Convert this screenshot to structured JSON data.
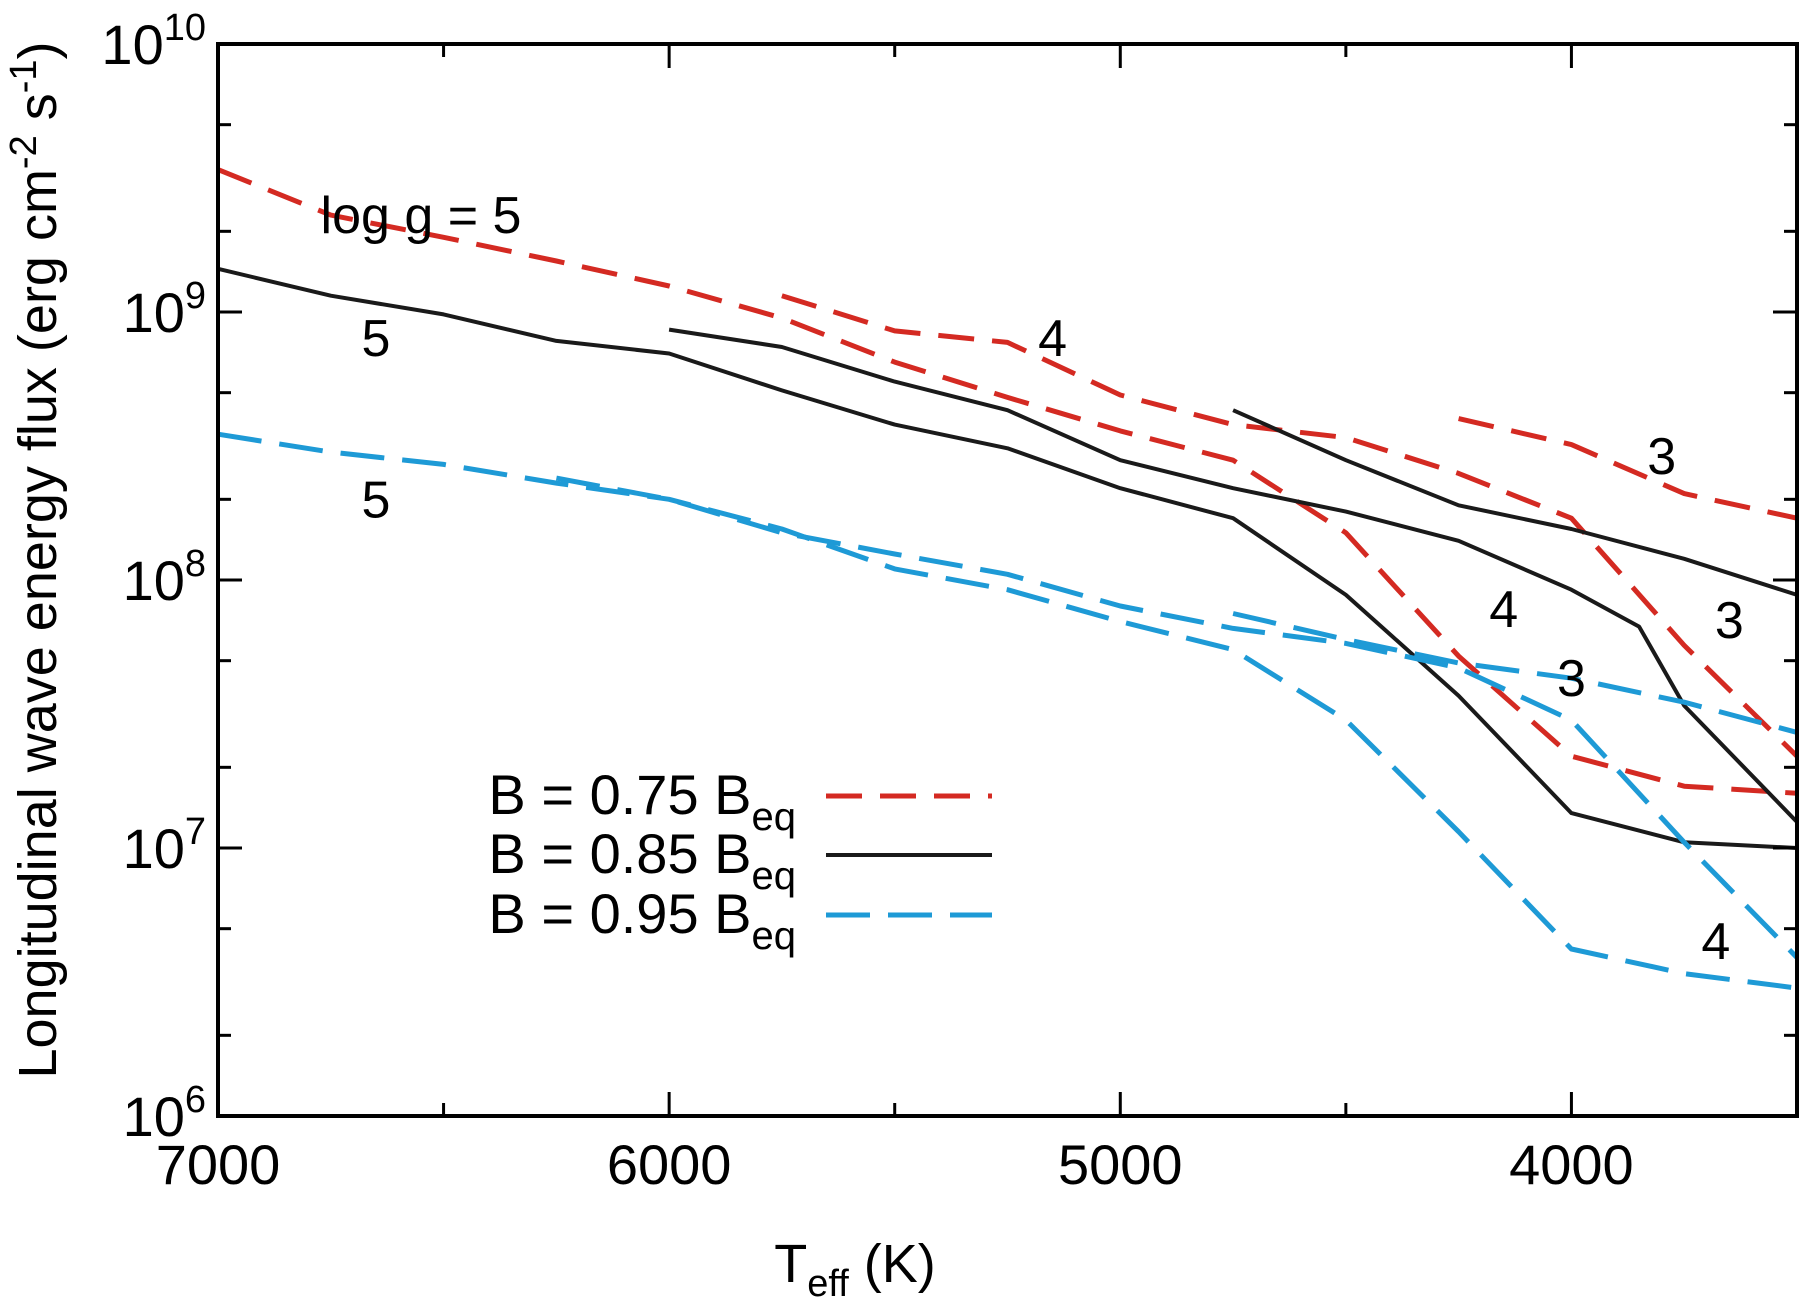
{
  "chart_data": {
    "type": "line",
    "title": "",
    "xlabel": {
      "base": "T",
      "sub": "eff",
      "rest": " (K)"
    },
    "ylabel": {
      "main": "Longitudinal wave energy flux  (erg cm",
      "sup1": "-2",
      "mid": " s",
      "sup2": "-1",
      "end": ")"
    },
    "x_reversed": true,
    "xlim": [
      7000,
      3500
    ],
    "x_ticks": [
      7000,
      6000,
      5000,
      4000
    ],
    "x_tick_labels": [
      "7000",
      "6000",
      "5000",
      "4000"
    ],
    "y_scale": "log",
    "ylim": [
      1000000,
      10000000000
    ],
    "y_ticks": [
      1000000,
      10000000,
      100000000,
      1000000000,
      10000000000
    ],
    "y_tick_labels": [
      {
        "base": "10",
        "exp": "6"
      },
      {
        "base": "10",
        "exp": "7"
      },
      {
        "base": "10",
        "exp": "8"
      },
      {
        "base": "10",
        "exp": "9"
      },
      {
        "base": "10",
        "exp": "10"
      }
    ],
    "grid": false,
    "legend_position": "lower-left",
    "legend": [
      {
        "prefix": "B = 0.75 B",
        "sub": "eq",
        "color": "#d42a22",
        "style": "dashed",
        "key": "red"
      },
      {
        "prefix": "B = 0.85 B",
        "sub": "eq",
        "color": "#1a1a1a",
        "style": "solid",
        "key": "black"
      },
      {
        "prefix": "B = 0.95 B",
        "sub": "eq",
        "color": "#1e9ad6",
        "style": "dashed",
        "key": "blue"
      }
    ],
    "series": [
      {
        "key": "red",
        "group": "log g = 5",
        "x": [
          7000,
          6750,
          6500,
          6250,
          6000,
          5750,
          5500,
          5250,
          5000,
          4750,
          4500,
          4250,
          4000,
          3750,
          3500
        ],
        "y": [
          3400000000,
          2300000000,
          1900000000,
          1550000000,
          1250000000,
          950000000,
          650000000,
          480000000,
          360000000,
          280000000,
          150000000,
          52000000,
          22000000,
          17000000,
          16000000
        ]
      },
      {
        "key": "red",
        "group": "log g = 4",
        "x": [
          5750,
          5500,
          5250,
          5000,
          4750,
          4500,
          4250,
          4000,
          3750,
          3500
        ],
        "y": [
          1150000000,
          850000000,
          770000000,
          490000000,
          380000000,
          340000000,
          250000000,
          170000000,
          57000000,
          22000000
        ]
      },
      {
        "key": "red",
        "group": "log g = 3",
        "x": [
          4250,
          4000,
          3750,
          3500
        ],
        "y": [
          400000000,
          320000000,
          210000000,
          170000000
        ]
      },
      {
        "key": "black",
        "group": "log g = 5",
        "x": [
          7000,
          6750,
          6500,
          6250,
          6000,
          5750,
          5500,
          5250,
          5000,
          4750,
          4500,
          4250,
          4000,
          3750,
          3500
        ],
        "y": [
          1450000000,
          1150000000,
          980000000,
          780000000,
          700000000,
          510000000,
          380000000,
          310000000,
          220000000,
          170000000,
          88000000,
          37000000,
          13500000,
          10500000,
          10000000
        ]
      },
      {
        "key": "black",
        "group": "log g = 4",
        "x": [
          6000,
          5750,
          5500,
          5250,
          5000,
          4750,
          4500,
          4250,
          4000,
          3850,
          3750,
          3500
        ],
        "y": [
          860000000,
          740000000,
          550000000,
          430000000,
          280000000,
          220000000,
          180000000,
          140000000,
          92000000,
          67000000,
          34000000,
          12500000
        ]
      },
      {
        "key": "black",
        "group": "log g = 3",
        "x": [
          4750,
          4500,
          4250,
          4000,
          3750,
          3500
        ],
        "y": [
          430000000,
          280000000,
          190000000,
          155000000,
          120000000,
          88000000
        ]
      },
      {
        "key": "blue",
        "group": "log g = 5",
        "x": [
          7000,
          6750,
          6500,
          6250,
          6000,
          5750,
          5500,
          5250,
          5000,
          4750,
          4500,
          4250,
          4000,
          3750,
          3500
        ],
        "y": [
          350000000,
          300000000,
          270000000,
          230000000,
          200000000,
          155000000,
          110000000,
          92000000,
          70000000,
          55000000,
          30000000,
          11500000,
          4200000,
          3400000,
          3000000
        ]
      },
      {
        "key": "blue",
        "group": "log g = 4",
        "x": [
          6250,
          6000,
          5750,
          5500,
          5250,
          5000,
          4750,
          4500,
          4250,
          4000,
          3750,
          3500
        ],
        "y": [
          240000000,
          200000000,
          150000000,
          125000000,
          105000000,
          80000000,
          66000000,
          58000000,
          47000000,
          30000000,
          10500000,
          3900000
        ]
      },
      {
        "key": "blue",
        "group": "log g = 3",
        "x": [
          4750,
          4500,
          4250,
          4000,
          3750,
          3500
        ],
        "y": [
          75000000,
          60000000,
          49000000,
          43000000,
          35000000,
          27000000
        ]
      }
    ],
    "annotations": [
      {
        "text": "log g = 5",
        "x": 6550,
        "y": 2300000000
      },
      {
        "text": "5",
        "x": 6650,
        "y": 800000000
      },
      {
        "text": "5",
        "x": 6650,
        "y": 200000000
      },
      {
        "text": "4",
        "x": 5150,
        "y": 800000000
      },
      {
        "text": "3",
        "x": 3800,
        "y": 290000000
      },
      {
        "text": "4",
        "x": 4150,
        "y": 78000000
      },
      {
        "text": "3",
        "x": 3650,
        "y": 71000000
      },
      {
        "text": "3",
        "x": 4000,
        "y": 43000000
      },
      {
        "text": "4",
        "x": 3680,
        "y": 4500000
      }
    ]
  }
}
